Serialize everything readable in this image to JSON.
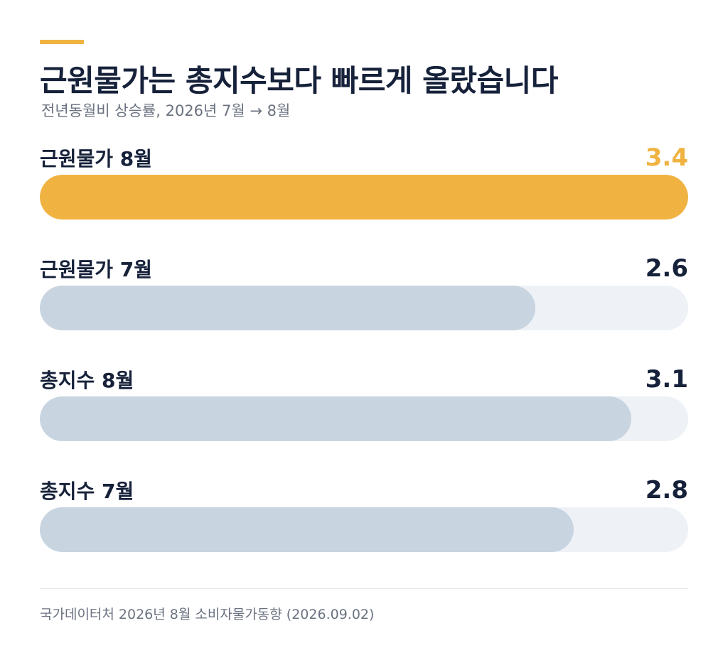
{
  "header": {
    "title": "근원물가는 총지수보다 빠르게 올랐습니다",
    "subtitle": "전년동월비 상승률, 2026년 7월 → 8월"
  },
  "chart_data": {
    "type": "bar",
    "orientation": "horizontal",
    "categories": [
      "근원물가 8월",
      "근원물가 7월",
      "총지수 8월",
      "총지수 7월"
    ],
    "values": [
      3.4,
      2.6,
      3.1,
      2.8
    ],
    "value_labels": [
      "3.4",
      "2.6",
      "3.1",
      "2.8"
    ],
    "highlight_index": 0,
    "xlim": [
      0,
      3.4
    ],
    "colors": {
      "highlight": "#f0b342",
      "bar": "#c9d4e1",
      "track": "#eef2f7"
    }
  },
  "footer": {
    "source": "국가데이터처 2026년 8월 소비자물가동향 (2026.09.02)"
  }
}
